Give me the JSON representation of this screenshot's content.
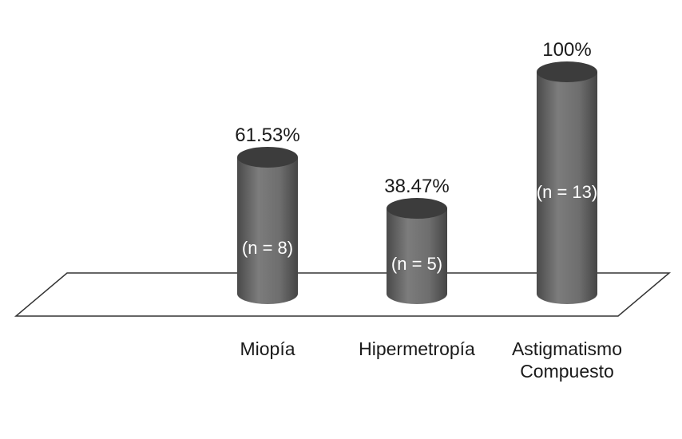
{
  "chart_data": {
    "type": "bar",
    "style": "3d-cylinder",
    "categories": [
      [
        "Miopía"
      ],
      [
        "Hipermetropía"
      ],
      [
        "Astigmatismo",
        "Compuesto"
      ]
    ],
    "values": [
      61.53,
      38.47,
      100
    ],
    "value_labels": [
      "61.53%",
      "38.47%",
      "100%"
    ],
    "count_labels": [
      "(n = 8)",
      "(n = 5)",
      "(n = 13)"
    ],
    "ylim": [
      0,
      100
    ],
    "grid": false,
    "legend": "none",
    "colors": {
      "bar_body": "#707070",
      "bar_top": "#3c3c3c",
      "floor_line": "#333333",
      "text": "#1a1a1a",
      "inner_text": "#ffffff"
    }
  }
}
